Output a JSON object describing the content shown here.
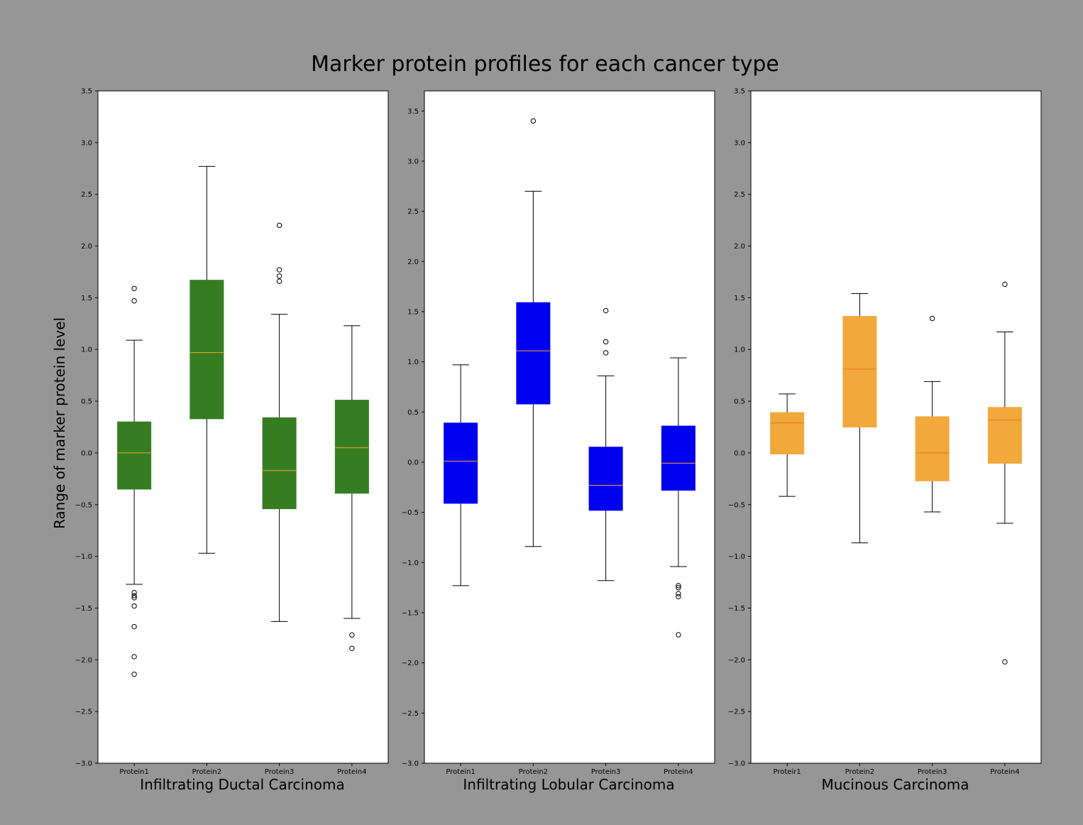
{
  "figure": {
    "title": "Marker protein profiles for each cancer type",
    "ylabel": "Range of marker protein level",
    "background": "#969696"
  },
  "chart_data": [
    {
      "type": "box",
      "title": "Infiltrating Ductal Carcinoma",
      "ylabel": "Range of marker protein level",
      "categories": [
        "Protein1",
        "Protein2",
        "Protein3",
        "Protein4"
      ],
      "ylim": [
        -3.0,
        3.5
      ],
      "yticks": [
        "3.5",
        "3.0",
        "2.5",
        "2.0",
        "1.5",
        "1.0",
        "0.5",
        "0.0",
        "−0.5",
        "−1.0",
        "−1.5",
        "−2.0",
        "−2.5",
        "−3.0"
      ],
      "box_color": "#367d22",
      "median_color": "#f5a623",
      "boxes": [
        {
          "label": "Protein1",
          "whislo": -1.27,
          "q1": -0.35,
          "med": 0.0,
          "q3": 0.3,
          "whishi": 1.09,
          "fliers": [
            1.59,
            1.47,
            -1.35,
            -1.38,
            -1.4,
            -1.48,
            -1.68,
            -1.97,
            -2.14
          ]
        },
        {
          "label": "Protein2",
          "whislo": -0.97,
          "q1": 0.33,
          "med": 0.97,
          "q3": 1.67,
          "whishi": 2.77,
          "fliers": []
        },
        {
          "label": "Protein3",
          "whislo": -1.63,
          "q1": -0.54,
          "med": -0.17,
          "q3": 0.34,
          "whishi": 1.34,
          "fliers": [
            2.2,
            1.77,
            1.71,
            1.66
          ]
        },
        {
          "label": "Protein4",
          "whislo": -1.6,
          "q1": -0.39,
          "med": 0.05,
          "q3": 0.51,
          "whishi": 1.23,
          "fliers": [
            -1.76,
            -1.89
          ]
        }
      ]
    },
    {
      "type": "box",
      "title": "Infiltrating Lobular Carcinoma",
      "categories": [
        "Protein1",
        "Protein2",
        "Protein3",
        "Protein4"
      ],
      "ylim": [
        -3.0,
        3.7
      ],
      "yticks": [
        "3.5",
        "3.0",
        "2.5",
        "2.0",
        "1.5",
        "1.0",
        "0.5",
        "0.0",
        "−0.5",
        "−1.0",
        "−1.5",
        "−2.0",
        "−2.5",
        "−3.0"
      ],
      "box_color": "#0000f0",
      "median_color": "#f5a623",
      "boxes": [
        {
          "label": "Protein1",
          "whislo": -1.23,
          "q1": -0.41,
          "med": 0.01,
          "q3": 0.39,
          "whishi": 0.97,
          "fliers": []
        },
        {
          "label": "Protein2",
          "whislo": -0.84,
          "q1": 0.58,
          "med": 1.11,
          "q3": 1.59,
          "whishi": 2.7,
          "fliers": [
            3.4
          ]
        },
        {
          "label": "Protein3",
          "whislo": -1.18,
          "q1": -0.48,
          "med": -0.23,
          "q3": 0.15,
          "whishi": 0.86,
          "fliers": [
            1.51,
            1.2,
            1.09
          ]
        },
        {
          "label": "Protein4",
          "whislo": -1.04,
          "q1": -0.28,
          "med": -0.01,
          "q3": 0.36,
          "whishi": 1.04,
          "fliers": [
            -1.23,
            -1.25,
            -1.31,
            -1.34,
            -1.72
          ]
        }
      ]
    },
    {
      "type": "box",
      "title": "Mucinous Carcinoma",
      "categories": [
        "Proteir1",
        "Protein2",
        "Protein3",
        "Protein4"
      ],
      "ylim": [
        -3.0,
        3.5
      ],
      "yticks": [
        "3.5",
        "3.0",
        "2.5",
        "2.0",
        "1.5",
        "1.0",
        "0.5",
        "0.0",
        "−0.5",
        "−1.0",
        "−1.5",
        "−2.0",
        "−2.5",
        "−3.0"
      ],
      "box_color": "#f0a93a",
      "median_color": "#f07030",
      "boxes": [
        {
          "label": "Proteir1",
          "whislo": -0.42,
          "q1": -0.01,
          "med": 0.29,
          "q3": 0.39,
          "whishi": 0.57,
          "fliers": []
        },
        {
          "label": "Protein2",
          "whislo": -0.87,
          "q1": 0.25,
          "med": 0.81,
          "q3": 1.32,
          "whishi": 1.54,
          "fliers": []
        },
        {
          "label": "Protein3",
          "whislo": -0.57,
          "q1": -0.27,
          "med": 0.0,
          "q3": 0.35,
          "whishi": 0.69,
          "fliers": [
            1.3
          ]
        },
        {
          "label": "Protein4",
          "whislo": -0.68,
          "q1": -0.1,
          "med": 0.32,
          "q3": 0.44,
          "whishi": 1.17,
          "fliers": [
            1.63,
            -2.02
          ]
        }
      ]
    }
  ]
}
